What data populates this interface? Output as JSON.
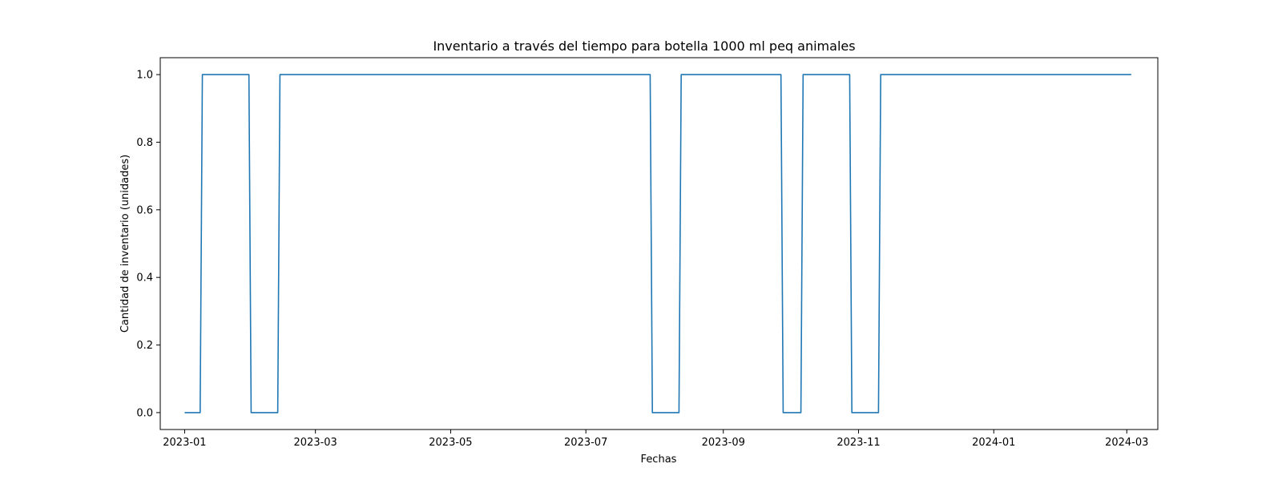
{
  "chart_data": {
    "type": "line",
    "title": "Inventario a través del tiempo para botella 1000 ml peq animales",
    "xlabel": "Fechas",
    "ylabel": "Cantidad de inventario (unidades)",
    "x_axis_type": "date",
    "xlim": [
      "2022-12-21",
      "2024-03-15"
    ],
    "ylim": [
      -0.05,
      1.05
    ],
    "x_tick_labels": [
      "2023-01",
      "2023-03",
      "2023-05",
      "2023-07",
      "2023-09",
      "2023-11",
      "2024-01",
      "2024-03"
    ],
    "y_tick_labels": [
      "0.0",
      "0.2",
      "0.4",
      "0.6",
      "0.8",
      "1.0"
    ],
    "grid": false,
    "legend": "none",
    "series": [
      {
        "color": "#1f77b4",
        "points": [
          [
            "2023-01-01",
            0
          ],
          [
            "2023-01-08",
            0
          ],
          [
            "2023-01-09",
            1
          ],
          [
            "2023-01-30",
            1
          ],
          [
            "2023-01-31",
            0
          ],
          [
            "2023-02-12",
            0
          ],
          [
            "2023-02-13",
            1
          ],
          [
            "2023-07-30",
            1
          ],
          [
            "2023-07-31",
            0
          ],
          [
            "2023-08-12",
            0
          ],
          [
            "2023-08-13",
            1
          ],
          [
            "2023-09-27",
            1
          ],
          [
            "2023-09-28",
            0
          ],
          [
            "2023-10-06",
            0
          ],
          [
            "2023-10-07",
            1
          ],
          [
            "2023-10-28",
            1
          ],
          [
            "2023-10-29",
            0
          ],
          [
            "2023-11-10",
            0
          ],
          [
            "2023-11-11",
            1
          ],
          [
            "2024-03-03",
            1
          ]
        ]
      }
    ]
  }
}
